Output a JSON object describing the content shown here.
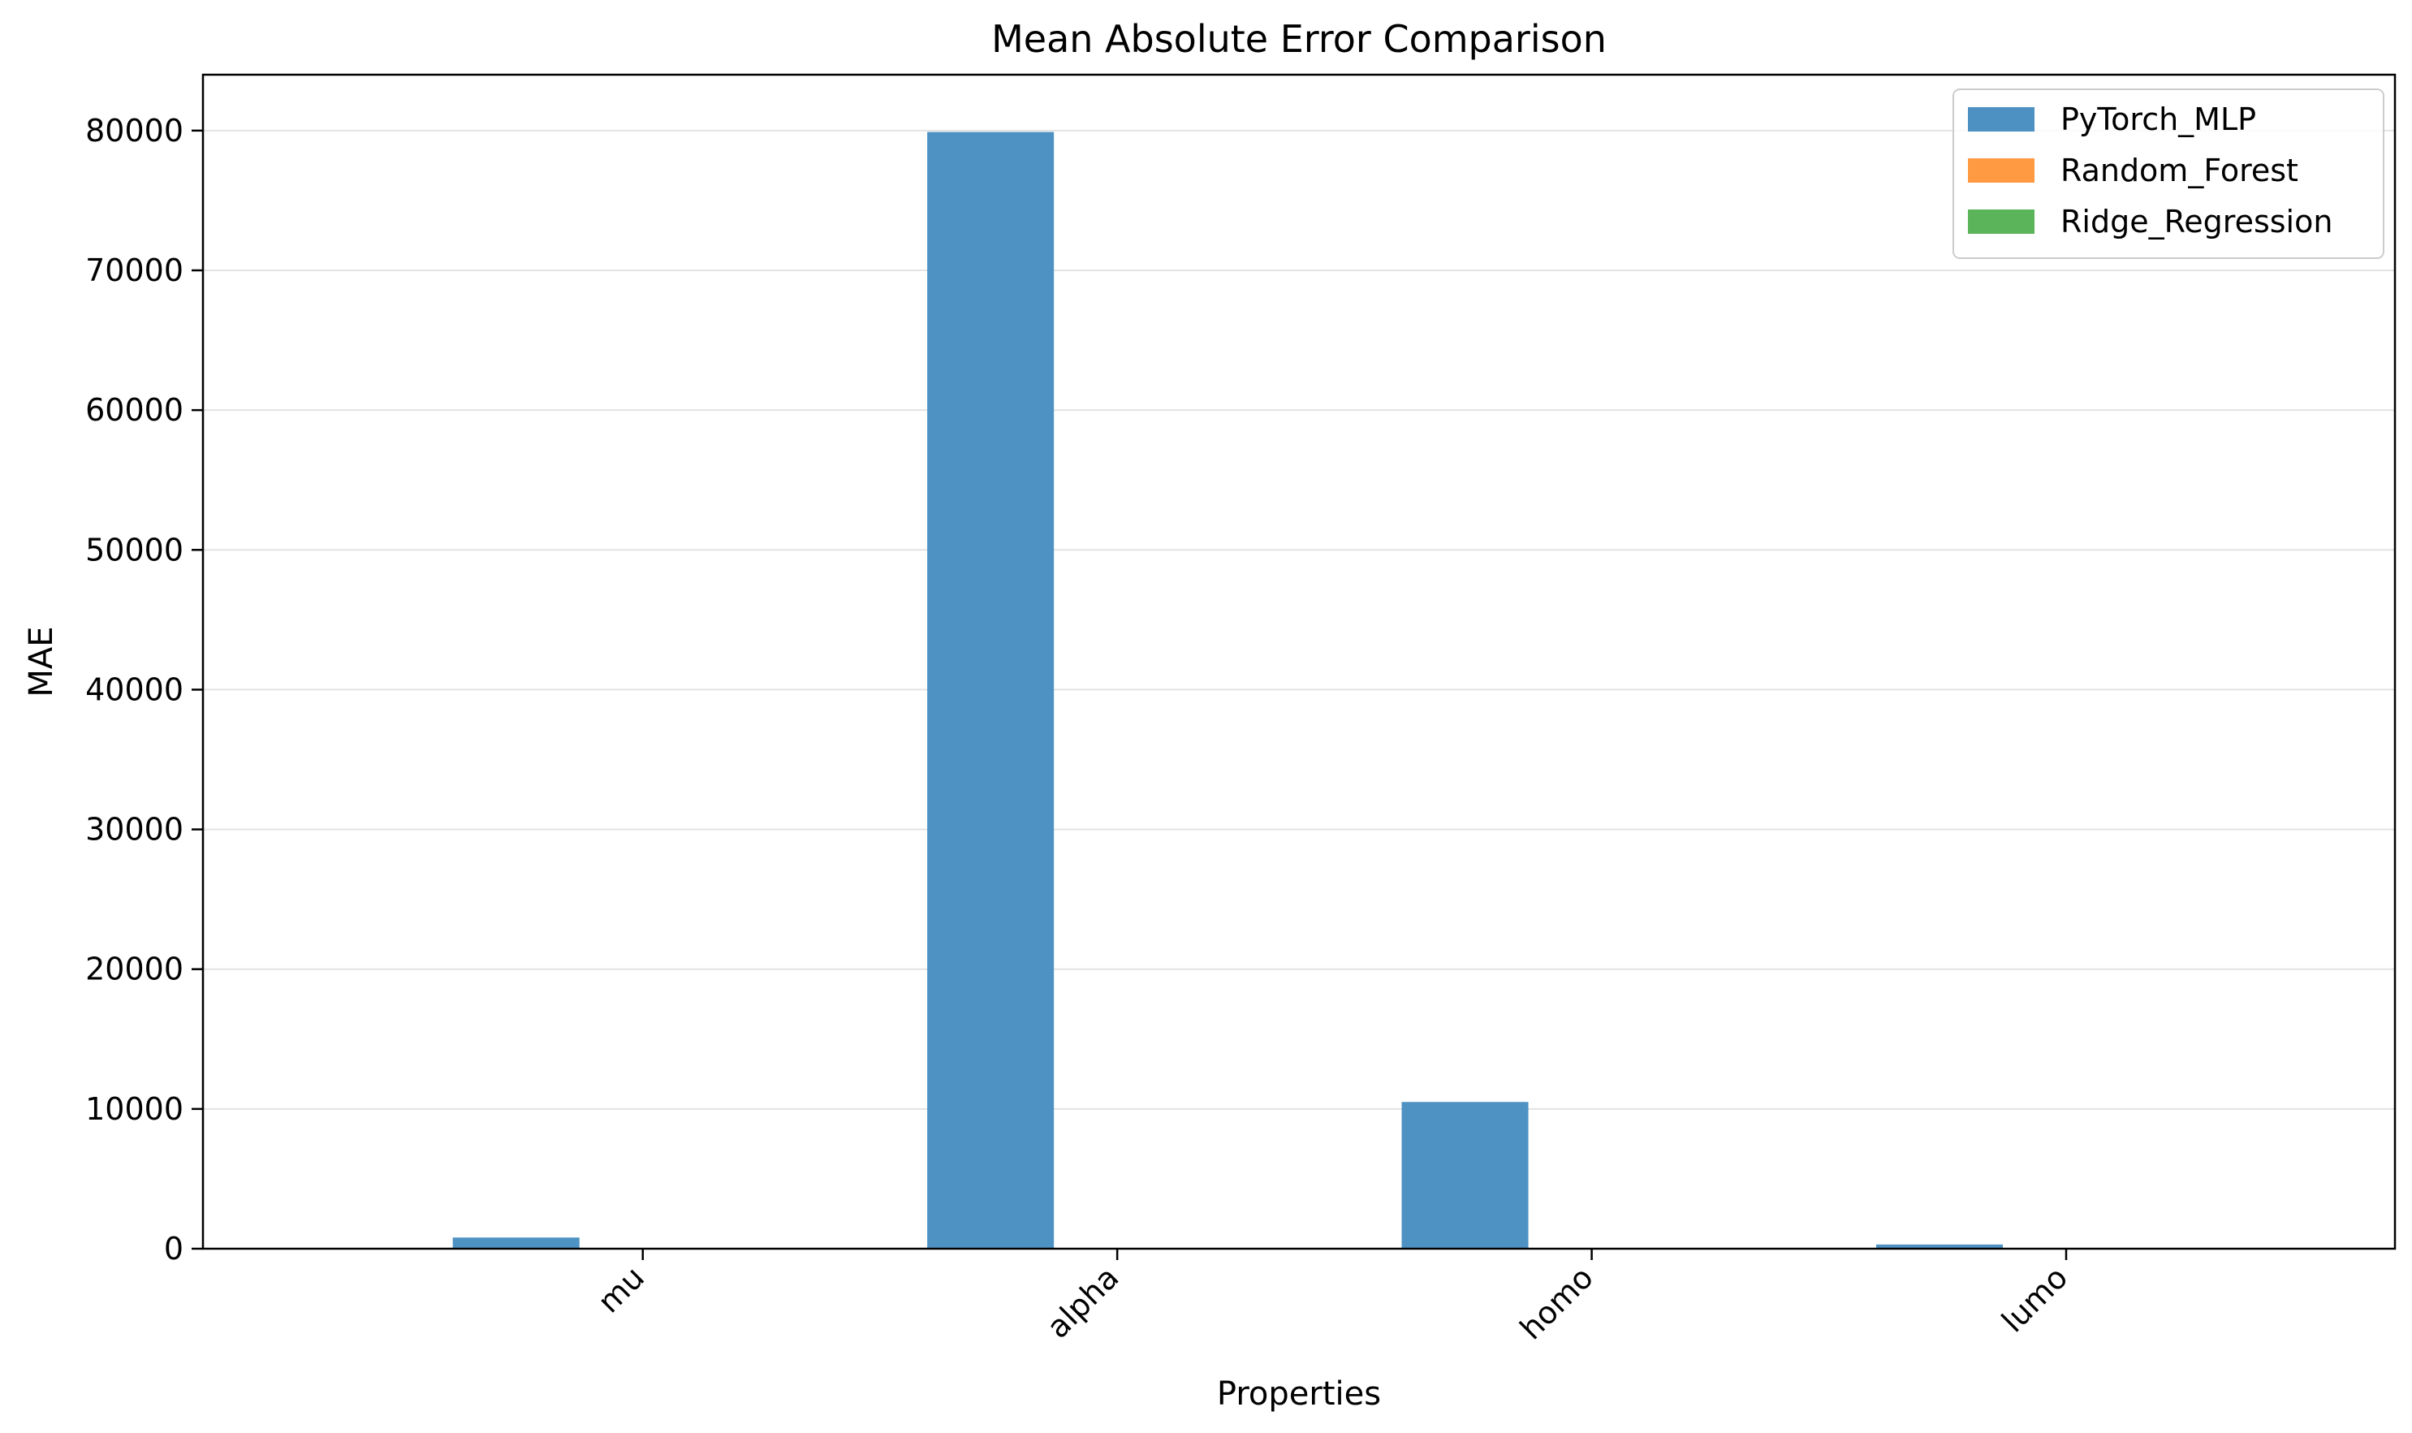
{
  "chart_data": {
    "type": "bar",
    "title": "Mean Absolute Error Comparison",
    "xlabel": "Properties",
    "ylabel": "MAE",
    "categories": [
      "mu",
      "alpha",
      "homo",
      "lumo"
    ],
    "series": [
      {
        "name": "PyTorch_MLP",
        "color": "#4c91c2",
        "values": [
          800,
          79900,
          10500,
          300
        ]
      },
      {
        "name": "Random_Forest",
        "color": "#ff9a42",
        "values": [
          0.5,
          0.5,
          0.01,
          0.01
        ]
      },
      {
        "name": "Ridge_Regression",
        "color": "#5cb45a",
        "values": [
          0.6,
          3,
          0.01,
          0.01
        ]
      }
    ],
    "ylim": [
      0,
      84000
    ],
    "yticks": [
      0,
      10000,
      20000,
      30000,
      40000,
      50000,
      60000,
      70000,
      80000
    ],
    "ytick_labels": [
      "0",
      "10000",
      "20000",
      "30000",
      "40000",
      "50000",
      "60000",
      "70000",
      "80000"
    ],
    "grid": "y",
    "legend_position": "top-right",
    "xtick_rotation": 45
  }
}
